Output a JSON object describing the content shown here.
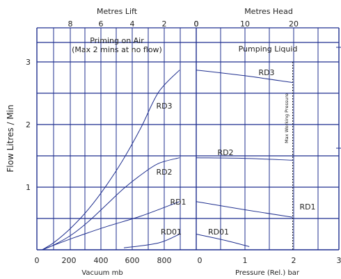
{
  "chart_data": {
    "type": "line",
    "left_axis": {
      "xlabel": "Vacuum mb",
      "ticks": [
        "0",
        "200",
        "400",
        "600",
        "800"
      ],
      "xlim": [
        0,
        1000
      ]
    },
    "right_axis": {
      "xlabel": "Pressure (Rel.) bar",
      "ticks": [
        "0",
        "1",
        "2",
        "3"
      ],
      "xlim": [
        0,
        3
      ]
    },
    "top_left_axis": {
      "label": "Metres Lift",
      "ticks": [
        "8",
        "6",
        "4",
        "2",
        "0"
      ]
    },
    "top_right_axis": {
      "label": "Metres Head",
      "ticks": [
        "0",
        "10",
        "20"
      ]
    },
    "y_axis": {
      "ylabel": "Flow Litres / Min",
      "ticks": [
        "1",
        "2",
        "3"
      ],
      "ylim": [
        0,
        3.05
      ]
    },
    "regions": {
      "left_title": "Priming on Air",
      "left_subtitle": "(Max 2 mins at no flow)",
      "right_title": "Pumping Liquid"
    },
    "annotations": {
      "max_working_pressure": "Max Working Pressure"
    },
    "series": [
      {
        "name": "RD3",
        "vacuum": [
          [
            30,
            0
          ],
          [
            100,
            0.12
          ],
          [
            200,
            0.36
          ],
          [
            300,
            0.66
          ],
          [
            400,
            1.03
          ],
          [
            500,
            1.46
          ],
          [
            600,
            1.96
          ],
          [
            700,
            2.52
          ],
          [
            820,
            2.87
          ]
        ],
        "pressure": [
          [
            0,
            2.87
          ],
          [
            1,
            2.78
          ],
          [
            2,
            2.67
          ]
        ]
      },
      {
        "name": "RD2",
        "vacuum": [
          [
            30,
            0
          ],
          [
            100,
            0.08
          ],
          [
            200,
            0.24
          ],
          [
            300,
            0.46
          ],
          [
            400,
            0.72
          ],
          [
            500,
            0.98
          ],
          [
            600,
            1.2
          ],
          [
            700,
            1.38
          ],
          [
            820,
            1.47
          ]
        ],
        "pressure": [
          [
            0,
            1.47
          ],
          [
            1,
            1.46
          ],
          [
            2,
            1.43
          ]
        ]
      },
      {
        "name": "RD1",
        "vacuum": [
          [
            30,
            0
          ],
          [
            200,
            0.18
          ],
          [
            400,
            0.37
          ],
          [
            600,
            0.54
          ],
          [
            820,
            0.77
          ]
        ],
        "pressure": [
          [
            0,
            0.77
          ],
          [
            1,
            0.64
          ],
          [
            2,
            0.52
          ]
        ]
      },
      {
        "name": "RD01",
        "vacuum": [
          [
            500,
            0.03
          ],
          [
            700,
            0.11
          ],
          [
            820,
            0.25
          ]
        ],
        "pressure": [
          [
            0,
            0.25
          ],
          [
            0.6,
            0.15
          ],
          [
            1.1,
            0.05
          ]
        ]
      }
    ],
    "series_labels": [
      "RD3",
      "RD3",
      "RD2",
      "RD2",
      "RD1",
      "RD1",
      "RD01",
      "RD01"
    ]
  }
}
